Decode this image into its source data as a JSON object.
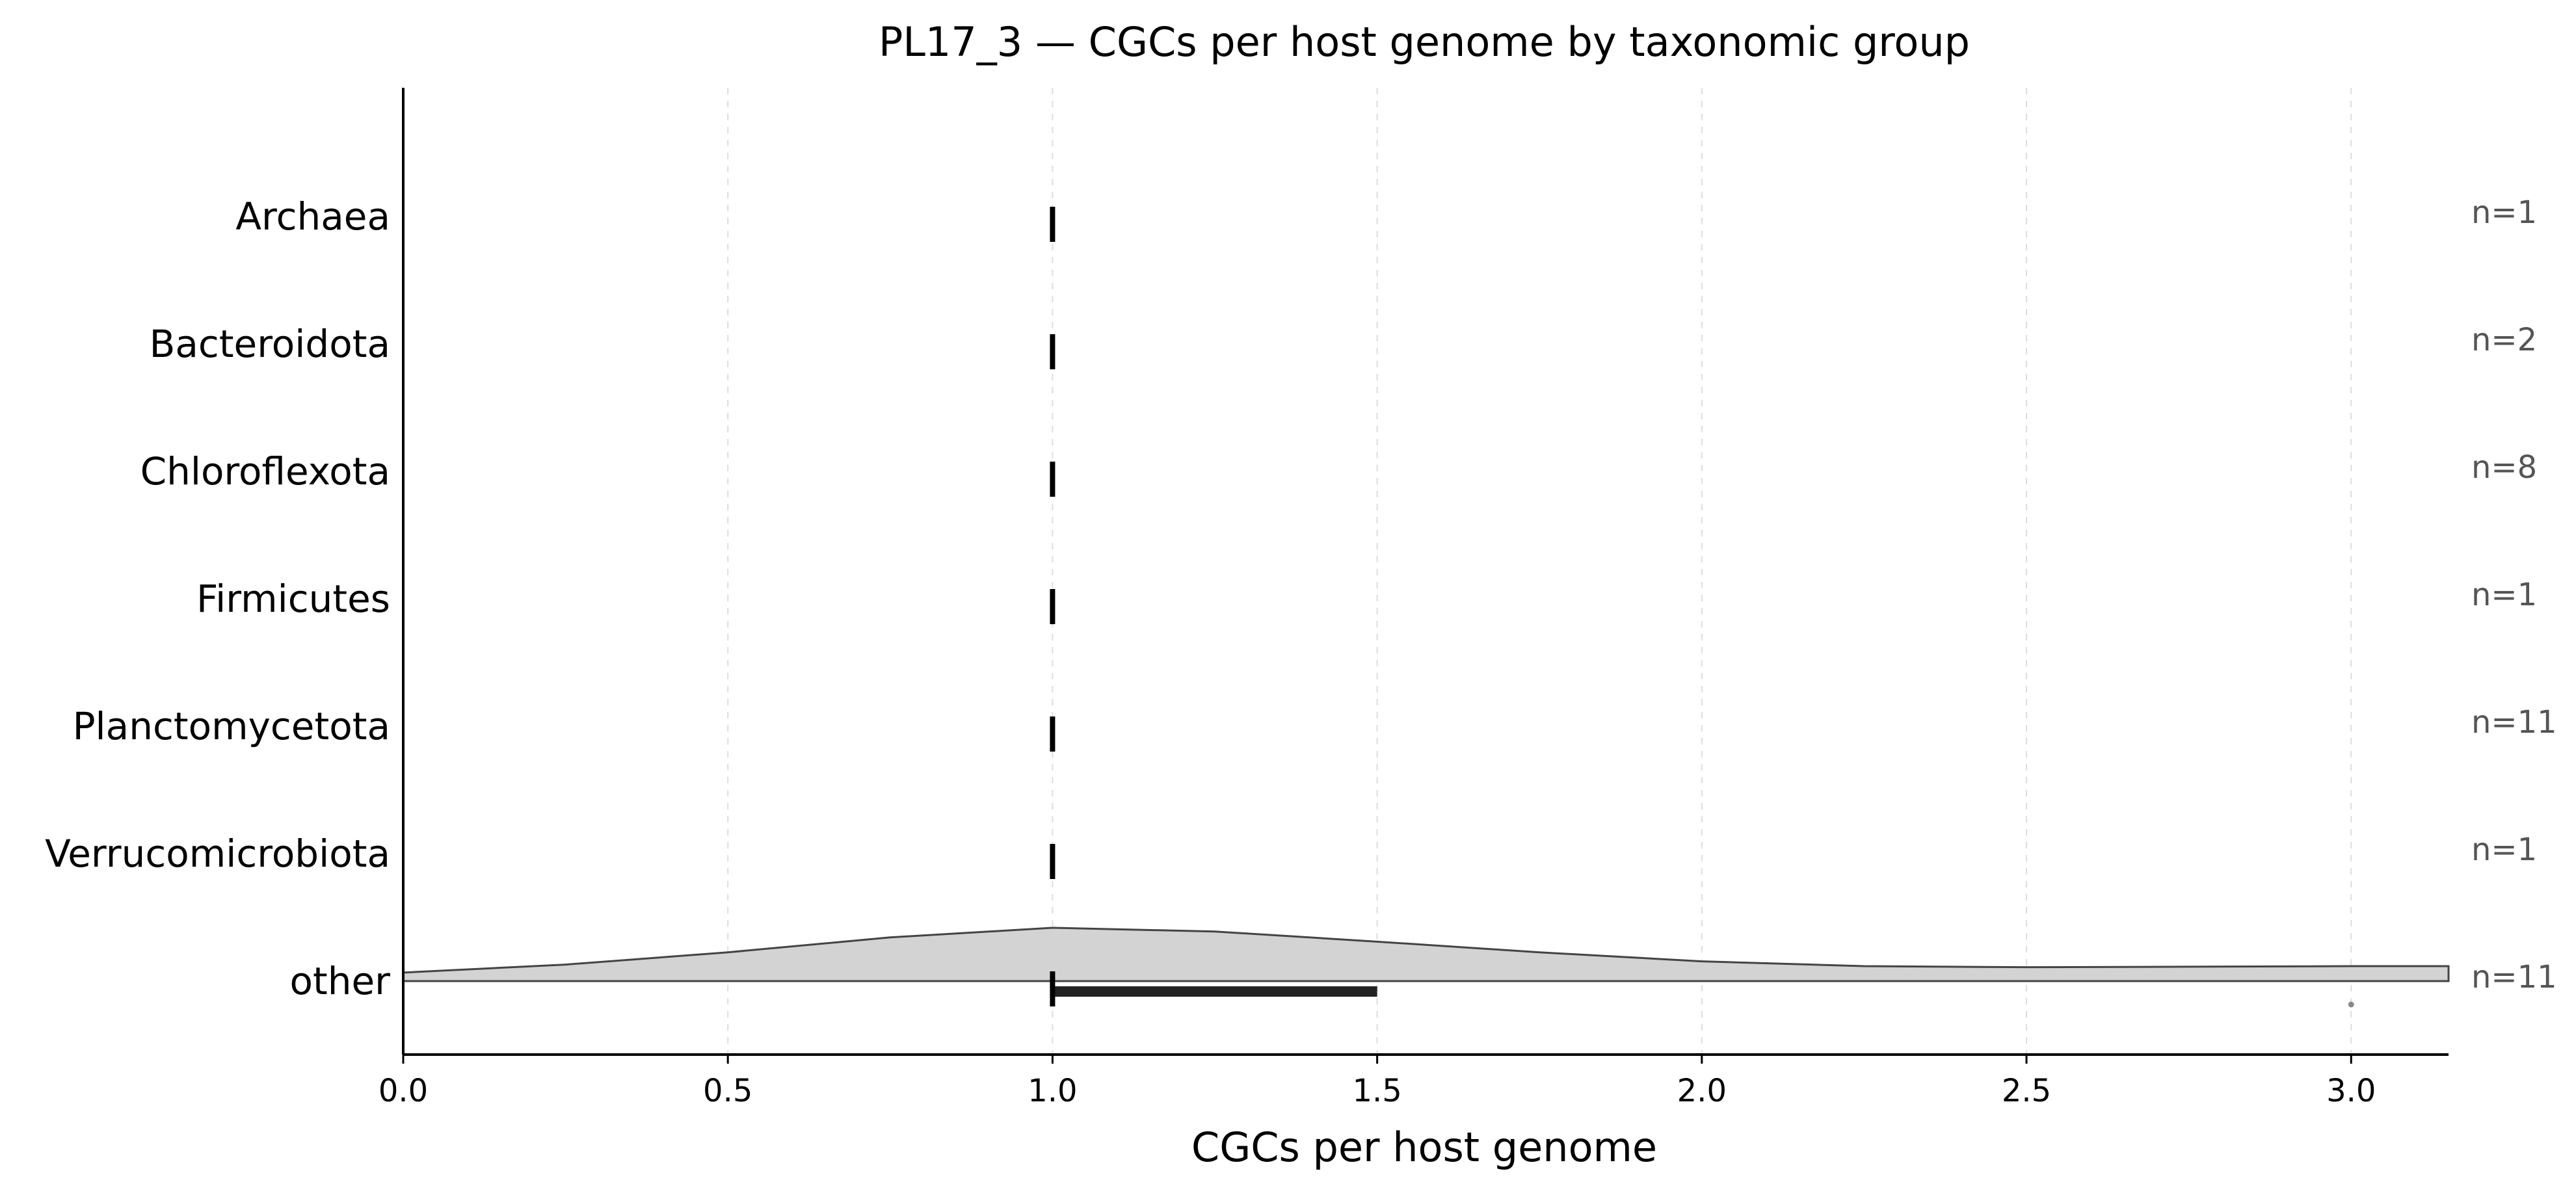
{
  "chart_data": {
    "type": "raincloud",
    "title": "PL17_3 — CGCs per host genome by taxonomic group",
    "xlabel": "CGCs per host genome",
    "ylabel": "",
    "xlim": [
      0,
      3.15
    ],
    "xticks": [
      "0.0",
      "0.5",
      "1.0",
      "1.5",
      "2.0",
      "2.5",
      "3.0"
    ],
    "xtick_values": [
      0,
      0.5,
      1.0,
      1.5,
      2.0,
      2.5,
      3.0
    ],
    "grid": "x-dashed",
    "categories": [
      "Archaea",
      "Bacteroidota",
      "Chloroflexota",
      "Firmicutes",
      "Planctomycetota",
      "Verrucomicrobiota",
      "other"
    ],
    "counts": [
      "n=1",
      "n=2",
      "n=8",
      "n=1",
      "n=11",
      "n=1",
      "n=11"
    ],
    "medians": [
      1.0,
      1.0,
      1.0,
      1.0,
      1.0,
      1.0,
      1.0
    ],
    "iqr": [
      [
        1.0,
        1.0
      ],
      [
        1.0,
        1.0
      ],
      [
        1.0,
        1.0
      ],
      [
        1.0,
        1.0
      ],
      [
        1.0,
        1.0
      ],
      [
        1.0,
        1.0
      ],
      [
        1.0,
        1.5
      ]
    ],
    "outliers": [
      [],
      [],
      [],
      [],
      [],
      [],
      [
        3.0
      ]
    ],
    "density": [
      null,
      null,
      null,
      null,
      null,
      null,
      {
        "x": [
          0.0,
          0.25,
          0.5,
          0.75,
          1.0,
          1.25,
          1.5,
          1.75,
          2.0,
          2.25,
          2.5,
          2.75,
          3.0,
          3.15
        ],
        "y": [
          0.16,
          0.31,
          0.54,
          0.82,
          1.0,
          0.93,
          0.74,
          0.54,
          0.37,
          0.28,
          0.26,
          0.27,
          0.28,
          0.28
        ]
      }
    ],
    "colors": {
      "violin_fill": "#d3d3d3",
      "violin_edge": "#444444",
      "median": "#000000",
      "box": "#222222",
      "outlier": "#888888",
      "count_text": "#555555",
      "grid": "#dddddd"
    }
  }
}
